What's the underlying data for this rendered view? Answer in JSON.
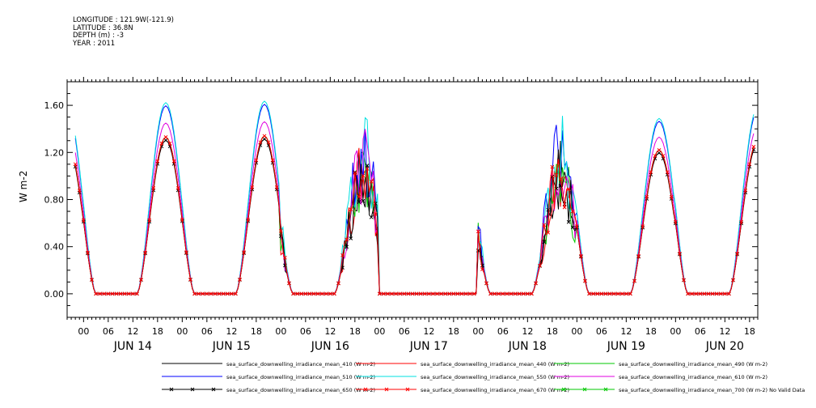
{
  "header": {
    "longitude": "LONGITUDE : 121.9W(-121.9)",
    "latitude": "LATITUDE : 36.8N",
    "depth": "DEPTH (m) : -3",
    "year": "YEAR : 2011"
  },
  "chart_data": {
    "type": "line",
    "title": "",
    "xlabel": "",
    "ylabel": "W m-2",
    "ylim": [
      -0.2,
      1.8
    ],
    "yticks": [
      "0.00",
      "0.40",
      "0.80",
      "1.20",
      "1.60"
    ],
    "ytick_values": [
      0.0,
      0.4,
      0.8,
      1.2,
      1.6
    ],
    "xlim_hours": [
      -4,
      164
    ],
    "hour_labels": [
      "00",
      "06",
      "12",
      "18",
      "00",
      "06",
      "12",
      "18",
      "00",
      "06",
      "12",
      "18",
      "00",
      "06",
      "12",
      "18",
      "00",
      "06",
      "12",
      "18",
      "00",
      "06",
      "12",
      "18",
      "00",
      "06",
      "12",
      "18"
    ],
    "day_labels": [
      "JUN 14",
      "JUN 15",
      "JUN 16",
      "JUN 17",
      "JUN 18",
      "JUN 19",
      "JUN 20"
    ],
    "grid": false,
    "legend_position": "bottom",
    "day_peaks": [
      1.33,
      1.34,
      1.0,
      0.0,
      1.0,
      1.22,
      1.3
    ],
    "series": [
      {
        "name": "sea_surface_downwelling_irradiance_mean_410 (W m-2)",
        "color": "#000000",
        "scale": 1.0,
        "marker": "none"
      },
      {
        "name": "sea_surface_downwelling_irradiance_mean_440 (W m-2)",
        "color": "#ff0000",
        "scale": 1.0,
        "marker": "none"
      },
      {
        "name": "sea_surface_downwelling_irradiance_mean_490 (W m-2)",
        "color": "#00c800",
        "scale": 1.0,
        "marker": "none"
      },
      {
        "name": "sea_surface_downwelling_irradiance_mean_510 (W m-2)",
        "color": "#0000ff",
        "scale": 1.2,
        "marker": "none"
      },
      {
        "name": "sea_surface_downwelling_irradiance_mean_550 (W m-2)",
        "color": "#00e0e0",
        "scale": 1.22,
        "marker": "none"
      },
      {
        "name": "sea_surface_downwelling_irradiance_mean_610 (W m-2)",
        "color": "#e000e0",
        "scale": 1.09,
        "marker": "none"
      },
      {
        "name": "sea_surface_downwelling_irradiance_mean_650 (W m-2)",
        "color": "#000000",
        "scale": 0.98,
        "marker": "x"
      },
      {
        "name": "sea_surface_downwelling_irradiance_mean_670 (W m-2)",
        "color": "#ff0000",
        "scale": 1.0,
        "marker": "x"
      },
      {
        "name": "sea_surface_downwelling_irradiance_mean_700 (W m-2) No Valid Data",
        "color": "#00c800",
        "scale": 0.0,
        "marker": "x"
      }
    ]
  }
}
